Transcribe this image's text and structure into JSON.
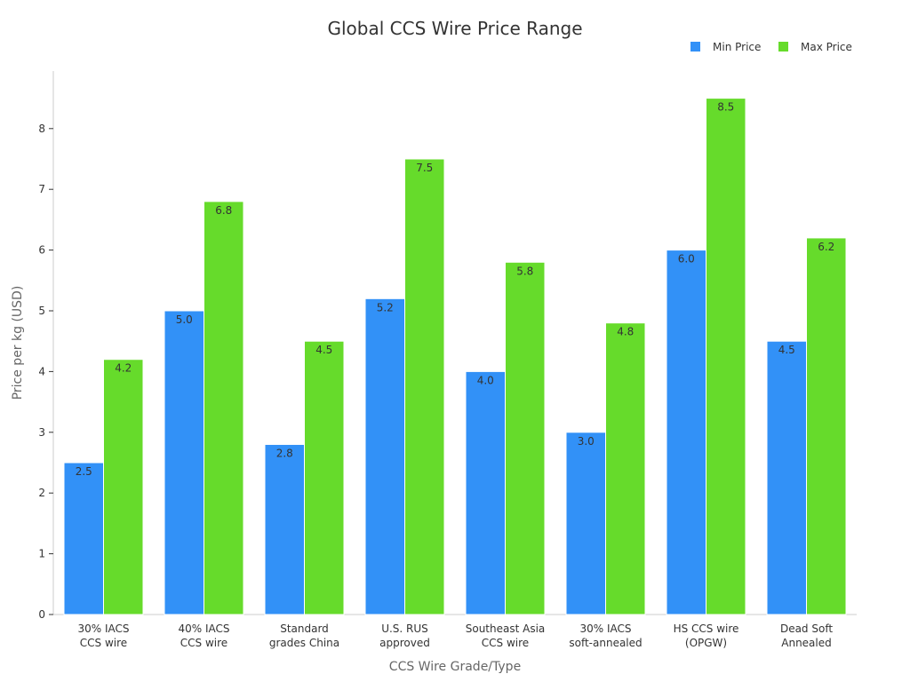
{
  "chart_data": {
    "type": "bar",
    "title": "Global CCS Wire Price Range",
    "xlabel": "CCS Wire Grade/Type",
    "ylabel": "Price per kg (USD)",
    "ylim": [
      0,
      9
    ],
    "yticks": [
      0,
      1,
      2,
      3,
      4,
      5,
      6,
      7,
      8
    ],
    "grid": false,
    "legend_position": "top-right",
    "categories": [
      [
        "30% IACS",
        "CCS wire"
      ],
      [
        "40% IACS",
        "CCS wire"
      ],
      [
        "Standard",
        "grades China"
      ],
      [
        "U.S. RUS",
        "approved"
      ],
      [
        "Southeast Asia",
        "CCS wire"
      ],
      [
        "30% IACS",
        "soft-annealed"
      ],
      [
        "HS CCS wire",
        "(OPGW)"
      ],
      [
        "Dead Soft",
        "Annealed"
      ]
    ],
    "series": [
      {
        "name": "Min Price",
        "color": "#3291f7",
        "values": [
          2.5,
          5.0,
          2.8,
          5.2,
          4.0,
          3.0,
          6.0,
          4.5
        ]
      },
      {
        "name": "Max Price",
        "color": "#66db2b",
        "values": [
          4.2,
          6.8,
          4.5,
          7.5,
          5.8,
          4.8,
          8.5,
          6.2
        ]
      }
    ]
  }
}
